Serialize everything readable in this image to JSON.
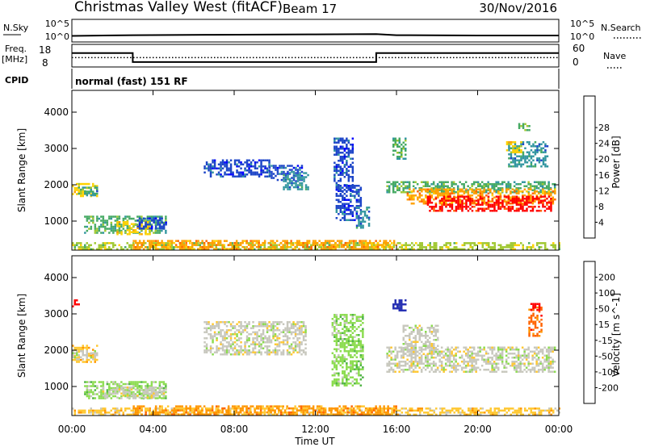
{
  "header": {
    "title": "Christmas Valley West (fitACF)",
    "beam": "Beam 17",
    "date": "30/Nov/2016"
  },
  "sky_panel": {
    "left_label": "N.Sky",
    "right_label": "N.Search",
    "ticks": [
      "10^5",
      "10^0"
    ],
    "right_ticks": [
      "10^5",
      "10^0"
    ],
    "nsky_line": [
      [
        0,
        1.2
      ],
      [
        3,
        1.4
      ],
      [
        7,
        1.5
      ],
      [
        12,
        1.6
      ],
      [
        15,
        1.7
      ],
      [
        16,
        1.4
      ],
      [
        20,
        1.3
      ],
      [
        24,
        1.3
      ]
    ]
  },
  "freq_panel": {
    "label_freq": "Freq.",
    "label_unit": "[MHz]",
    "right_label": "Nave",
    "left_ticks": [
      "18",
      "8"
    ],
    "right_ticks": [
      "60",
      "0"
    ],
    "freq_steps": [
      [
        0,
        14.6
      ],
      [
        3.0,
        14.6
      ],
      [
        3.0,
        9.8
      ],
      [
        15.0,
        9.8
      ],
      [
        15.0,
        14.6
      ],
      [
        24,
        14.6
      ]
    ],
    "nave_level": 12.2
  },
  "cpid": {
    "label": "CPID",
    "text": "normal (fast) 151 RF"
  },
  "chart_data": [
    {
      "type": "heatmap",
      "name": "power",
      "ylabel": "Slant Range [km]",
      "yticks": [
        1000,
        2000,
        3000,
        4000
      ],
      "ylim": [
        200,
        4600
      ],
      "xlim": [
        0,
        24
      ],
      "colorbar": {
        "label": "Power [dB]",
        "ticks": [
          "4",
          "8",
          "12",
          "16",
          "20",
          "24",
          "28"
        ],
        "colors": [
          "#0000ff",
          "#1e46c8",
          "#3296a0",
          "#46aa64",
          "#a0c832",
          "#ffd200",
          "#ffa000",
          "#ff6400",
          "#ff0000"
        ]
      },
      "regions": [
        {
          "t0": 0.0,
          "t1": 1.2,
          "r0": 1700,
          "r1": 2050,
          "c": 5
        },
        {
          "t0": 0.3,
          "t1": 1.2,
          "r0": 1750,
          "r1": 1950,
          "c": 3
        },
        {
          "t0": 0.6,
          "t1": 1.2,
          "r0": 1700,
          "r1": 1850,
          "c": 2
        },
        {
          "t0": 0.6,
          "t1": 4.6,
          "r0": 700,
          "r1": 1150,
          "c": 3
        },
        {
          "t0": 2.2,
          "t1": 3.8,
          "r0": 650,
          "r1": 1000,
          "c": 5
        },
        {
          "t0": 3.2,
          "t1": 4.6,
          "r0": 800,
          "r1": 1100,
          "c": 1
        },
        {
          "t0": 0.0,
          "t1": 24.0,
          "r0": 250,
          "r1": 420,
          "c": 4
        },
        {
          "t0": 3.0,
          "t1": 16.0,
          "r0": 250,
          "r1": 480,
          "c": 6
        },
        {
          "t0": 6.5,
          "t1": 9.7,
          "r0": 2200,
          "r1": 2700,
          "c": 1
        },
        {
          "t0": 9.7,
          "t1": 11.3,
          "r0": 2150,
          "r1": 2550,
          "c": 1
        },
        {
          "t0": 10.4,
          "t1": 11.6,
          "r0": 1900,
          "r1": 2350,
          "c": 2
        },
        {
          "t0": 12.9,
          "t1": 13.8,
          "r0": 1800,
          "r1": 3300,
          "c": 1
        },
        {
          "t0": 13.0,
          "t1": 14.2,
          "r0": 1000,
          "r1": 2000,
          "c": 1
        },
        {
          "t0": 14.0,
          "t1": 14.6,
          "r0": 800,
          "r1": 1400,
          "c": 2
        },
        {
          "t0": 15.8,
          "t1": 16.4,
          "r0": 2700,
          "r1": 3300,
          "c": 3
        },
        {
          "t0": 15.5,
          "t1": 23.8,
          "r0": 1800,
          "r1": 2100,
          "c": 3
        },
        {
          "t0": 16.5,
          "t1": 23.8,
          "r0": 1500,
          "r1": 1900,
          "c": 6
        },
        {
          "t0": 17.5,
          "t1": 23.6,
          "r0": 1300,
          "r1": 1700,
          "c": 8
        },
        {
          "t0": 21.5,
          "t1": 23.4,
          "r0": 2500,
          "r1": 3200,
          "c": 2
        },
        {
          "t0": 21.4,
          "t1": 22.1,
          "r0": 2900,
          "r1": 3200,
          "c": 5
        },
        {
          "t0": 22.0,
          "t1": 22.5,
          "r0": 3500,
          "r1": 3700,
          "c": 3
        }
      ]
    },
    {
      "type": "heatmap",
      "name": "velocity",
      "ylabel": "Slant Range [km]",
      "yticks": [
        1000,
        2000,
        3000,
        4000
      ],
      "ylim": [
        200,
        4600
      ],
      "xlim": [
        0,
        24
      ],
      "colorbar": {
        "label": "Velocity [m s^-1]",
        "ticks": [
          "200",
          "100",
          "50",
          "15",
          "-15",
          "-50",
          "-100",
          "-200"
        ],
        "colors": [
          "#2832b4",
          "#3c50b4",
          "#50b446",
          "#8cdc50",
          "#c8c8be",
          "#ffc832",
          "#ff9600",
          "#ff6400",
          "#ff0000"
        ]
      },
      "regions": [
        {
          "t0": 0.0,
          "t1": 1.2,
          "r0": 1700,
          "r1": 2150,
          "c": 5
        },
        {
          "t0": 0.0,
          "t1": 1.2,
          "r0": 1750,
          "r1": 2000,
          "c": 4
        },
        {
          "t0": 0.6,
          "t1": 4.6,
          "r0": 650,
          "r1": 1150,
          "c": 3
        },
        {
          "t0": 1.5,
          "t1": 4.6,
          "r0": 700,
          "r1": 1000,
          "c": 4
        },
        {
          "t0": 0.0,
          "t1": 24.0,
          "r0": 250,
          "r1": 420,
          "c": 5
        },
        {
          "t0": 3.0,
          "t1": 16.0,
          "r0": 250,
          "r1": 480,
          "c": 6
        },
        {
          "t0": 6.5,
          "t1": 11.5,
          "r0": 1900,
          "r1": 2800,
          "c": 4
        },
        {
          "t0": 12.8,
          "t1": 14.3,
          "r0": 1000,
          "r1": 3000,
          "c": 3
        },
        {
          "t0": 15.8,
          "t1": 16.4,
          "r0": 3100,
          "r1": 3400,
          "c": 0
        },
        {
          "t0": 15.5,
          "t1": 23.8,
          "r0": 1400,
          "r1": 2100,
          "c": 4
        },
        {
          "t0": 16.3,
          "t1": 18.0,
          "r0": 1900,
          "r1": 2700,
          "c": 4
        },
        {
          "t0": 22.5,
          "t1": 23.1,
          "r0": 2400,
          "r1": 3200,
          "c": 7
        },
        {
          "t0": 22.6,
          "t1": 23.0,
          "r0": 3100,
          "r1": 3300,
          "c": 8
        },
        {
          "t0": 0.0,
          "t1": 0.3,
          "r0": 3200,
          "r1": 3400,
          "c": 8
        }
      ]
    }
  ],
  "time_axis": {
    "ticks": [
      "00:00",
      "04:00",
      "08:00",
      "12:00",
      "16:00",
      "20:00",
      "00:00"
    ],
    "label": "Time UT"
  }
}
